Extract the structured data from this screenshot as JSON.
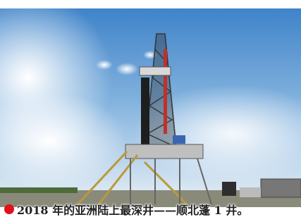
{
  "caption": "2018 年的亚洲陆上最深井——顺北蓬 1 井。"
}
